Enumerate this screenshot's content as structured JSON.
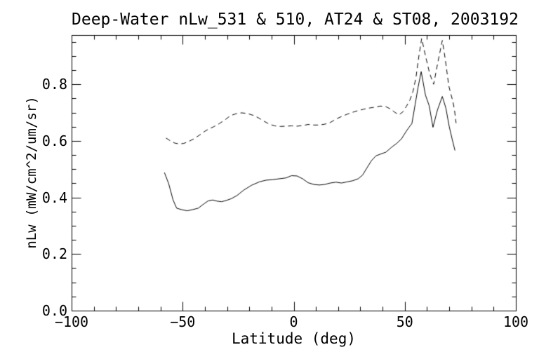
{
  "window": {
    "background_color": "#ffffff",
    "foreground_color": "#000000"
  },
  "chart_data": {
    "type": "line",
    "title": "Deep-Water nLw_531 & 510, AT24 & ST08, 2003192",
    "xlabel": "Latitude (deg)",
    "ylabel": "nLw (mW/cm^2/um/sr)",
    "xlim": [
      -100,
      100
    ],
    "ylim": [
      0,
      0.974
    ],
    "x_major_ticks": [
      -100,
      -50,
      0,
      50,
      100
    ],
    "x_tick_labels": [
      "−100",
      "−50",
      "0",
      "50",
      "100"
    ],
    "x_minor_tick_interval": 10,
    "y_major_ticks": [
      0.0,
      0.2,
      0.4,
      0.6,
      0.8
    ],
    "y_tick_labels": [
      "0.0",
      "0.2",
      "0.4",
      "0.6",
      "0.8"
    ],
    "y_minor_tick_interval": 0.05,
    "grid": false,
    "legend": "none",
    "series": [
      {
        "name": "nLw_531",
        "line_style": "solid",
        "color": "#000000",
        "points": [
          [
            -58.2,
            0.488
          ],
          [
            -56.3,
            0.449
          ],
          [
            -54.3,
            0.391
          ],
          [
            -52.7,
            0.362
          ],
          [
            -50.5,
            0.357
          ],
          [
            -48.0,
            0.353
          ],
          [
            -45.5,
            0.357
          ],
          [
            -43.0,
            0.362
          ],
          [
            -40.5,
            0.377
          ],
          [
            -38.5,
            0.388
          ],
          [
            -36.5,
            0.391
          ],
          [
            -34.5,
            0.387
          ],
          [
            -32.5,
            0.385
          ],
          [
            -30.5,
            0.389
          ],
          [
            -28.0,
            0.396
          ],
          [
            -25.5,
            0.407
          ],
          [
            -22.5,
            0.426
          ],
          [
            -19.0,
            0.443
          ],
          [
            -15.5,
            0.455
          ],
          [
            -12.5,
            0.461
          ],
          [
            -9.5,
            0.463
          ],
          [
            -6.5,
            0.466
          ],
          [
            -3.5,
            0.469
          ],
          [
            -1.0,
            0.477
          ],
          [
            1.5,
            0.476
          ],
          [
            4.0,
            0.466
          ],
          [
            6.5,
            0.452
          ],
          [
            9.0,
            0.446
          ],
          [
            11.5,
            0.444
          ],
          [
            14.0,
            0.446
          ],
          [
            16.5,
            0.451
          ],
          [
            19.0,
            0.454
          ],
          [
            21.5,
            0.451
          ],
          [
            24.0,
            0.455
          ],
          [
            26.5,
            0.459
          ],
          [
            29.0,
            0.466
          ],
          [
            31.0,
            0.479
          ],
          [
            33.0,
            0.505
          ],
          [
            35.0,
            0.53
          ],
          [
            37.0,
            0.547
          ],
          [
            39.0,
            0.553
          ],
          [
            41.5,
            0.56
          ],
          [
            44.0,
            0.577
          ],
          [
            46.5,
            0.592
          ],
          [
            48.5,
            0.607
          ],
          [
            50.5,
            0.632
          ],
          [
            52.0,
            0.649
          ],
          [
            53.2,
            0.661
          ],
          [
            54.7,
            0.73
          ],
          [
            56.0,
            0.79
          ],
          [
            57.4,
            0.845
          ],
          [
            59.3,
            0.762
          ],
          [
            61.0,
            0.724
          ],
          [
            62.7,
            0.648
          ],
          [
            64.7,
            0.709
          ],
          [
            66.9,
            0.757
          ],
          [
            68.5,
            0.716
          ],
          [
            70.0,
            0.651
          ],
          [
            71.3,
            0.607
          ],
          [
            72.6,
            0.566
          ]
        ]
      },
      {
        "name": "nLw_510",
        "line_style": "dashed",
        "color": "#000000",
        "points": [
          [
            -57.5,
            0.61
          ],
          [
            -55.5,
            0.6
          ],
          [
            -53.5,
            0.592
          ],
          [
            -51.5,
            0.589
          ],
          [
            -49.5,
            0.591
          ],
          [
            -47.5,
            0.597
          ],
          [
            -45.0,
            0.607
          ],
          [
            -42.5,
            0.62
          ],
          [
            -40.0,
            0.634
          ],
          [
            -38.0,
            0.643
          ],
          [
            -36.0,
            0.65
          ],
          [
            -33.5,
            0.661
          ],
          [
            -31.0,
            0.674
          ],
          [
            -28.5,
            0.689
          ],
          [
            -26.0,
            0.696
          ],
          [
            -23.5,
            0.699
          ],
          [
            -21.0,
            0.697
          ],
          [
            -18.5,
            0.691
          ],
          [
            -16.0,
            0.682
          ],
          [
            -13.5,
            0.67
          ],
          [
            -11.0,
            0.659
          ],
          [
            -8.5,
            0.653
          ],
          [
            -6.0,
            0.651
          ],
          [
            -3.5,
            0.652
          ],
          [
            -1.0,
            0.653
          ],
          [
            1.5,
            0.652
          ],
          [
            4.0,
            0.654
          ],
          [
            6.5,
            0.658
          ],
          [
            9.0,
            0.656
          ],
          [
            11.5,
            0.656
          ],
          [
            14.0,
            0.659
          ],
          [
            16.5,
            0.665
          ],
          [
            19.0,
            0.677
          ],
          [
            21.5,
            0.686
          ],
          [
            24.0,
            0.694
          ],
          [
            26.5,
            0.701
          ],
          [
            29.0,
            0.707
          ],
          [
            31.5,
            0.712
          ],
          [
            34.0,
            0.716
          ],
          [
            36.5,
            0.719
          ],
          [
            39.0,
            0.723
          ],
          [
            41.5,
            0.721
          ],
          [
            43.7,
            0.712
          ],
          [
            45.5,
            0.701
          ],
          [
            47.4,
            0.692
          ],
          [
            49.2,
            0.703
          ],
          [
            50.8,
            0.723
          ],
          [
            52.3,
            0.744
          ],
          [
            53.7,
            0.775
          ],
          [
            55.0,
            0.822
          ],
          [
            56.3,
            0.897
          ],
          [
            57.6,
            0.962
          ],
          [
            59.4,
            0.898
          ],
          [
            61.2,
            0.838
          ],
          [
            63.0,
            0.8
          ],
          [
            64.9,
            0.878
          ],
          [
            66.9,
            0.955
          ],
          [
            68.3,
            0.885
          ],
          [
            69.8,
            0.795
          ],
          [
            70.8,
            0.764
          ],
          [
            71.7,
            0.738
          ],
          [
            72.4,
            0.708
          ],
          [
            73.1,
            0.663
          ]
        ]
      }
    ]
  }
}
